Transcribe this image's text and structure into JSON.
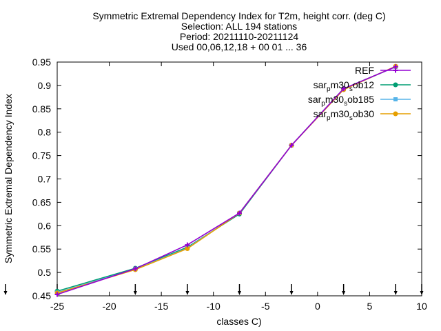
{
  "chart_data": {
    "type": "line",
    "title_lines": [
      "Symmetric Extremal Dependency Index  for T2m, height corr. (deg C)",
      "Selection: ALL    194 stations",
      "Period: 20211110-20211124",
      "Used 00,06,12,18 + 00 01 ... 36"
    ],
    "xlabel": "classes C)",
    "ylabel": "Symmetric Extremal Dependency Index",
    "xlim": [
      -25,
      10
    ],
    "ylim": [
      0.45,
      0.95
    ],
    "xticks": [
      -25,
      -20,
      -15,
      -10,
      -5,
      0,
      5,
      10
    ],
    "xtick_labels": [
      "-25",
      "-20",
      "-15",
      "-10",
      "-5",
      "0",
      "5",
      "10"
    ],
    "yticks": [
      0.45,
      0.5,
      0.55,
      0.6,
      0.65,
      0.7,
      0.75,
      0.8,
      0.85,
      0.9,
      0.95
    ],
    "ytick_labels": [
      "0.45",
      "0.5",
      "0.55",
      "0.6",
      "0.65",
      "0.7",
      "0.75",
      "0.8",
      "0.85",
      "0.9",
      "0.95"
    ],
    "class_markers_x": [
      -25,
      -17.5,
      -12.5,
      -7.5,
      -2.5,
      2.5,
      7.5,
      10
    ],
    "legend_position": "top-right",
    "x": [
      -25,
      -17.5,
      -12.5,
      -7.5,
      -2.5,
      2.5,
      7.5
    ],
    "series": [
      {
        "name_parts": [
          [
            "sar",
            ""
          ],
          [
            "p",
            "sub"
          ],
          [
            "m30",
            ""
          ],
          [
            "s",
            "sub"
          ],
          [
            "ob12",
            ""
          ]
        ],
        "color": "#009e73",
        "marker": "filled-circle",
        "values": [
          0.46,
          0.509,
          0.554,
          0.625,
          0.772,
          0.893,
          0.94
        ]
      },
      {
        "name_parts": [
          [
            "sar",
            ""
          ],
          [
            "p",
            "sub"
          ],
          [
            "m30",
            ""
          ],
          [
            "s",
            "sub"
          ],
          [
            "ob185",
            ""
          ]
        ],
        "color": "#56b4e9",
        "marker": "filled-square",
        "values": [
          0.457,
          0.507,
          0.552,
          0.627,
          0.772,
          0.892,
          0.94
        ]
      },
      {
        "name_parts": [
          [
            "sar",
            ""
          ],
          [
            "p",
            "sub"
          ],
          [
            "m30",
            ""
          ],
          [
            "s",
            "sub"
          ],
          [
            "ob30",
            ""
          ]
        ],
        "color": "#e69f00",
        "marker": "filled-circle",
        "values": [
          0.456,
          0.506,
          0.551,
          0.627,
          0.772,
          0.891,
          0.941
        ]
      },
      {
        "name": "REF",
        "color": "#9400d3",
        "marker": "plus",
        "values": [
          0.453,
          0.508,
          0.559,
          0.627,
          0.772,
          0.893,
          0.94
        ]
      }
    ],
    "legend_order": [
      3,
      0,
      1,
      2
    ]
  }
}
